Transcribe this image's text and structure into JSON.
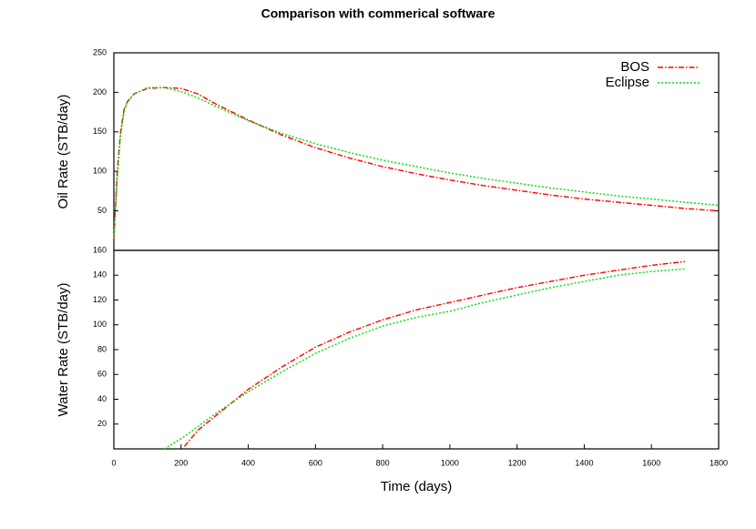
{
  "chart_data": [
    {
      "type": "line",
      "title": "Comparison with commerical software",
      "ylabel": "Oil Rate (STB/day)",
      "xlim": [
        0,
        1800
      ],
      "ylim": [
        0,
        250
      ],
      "yticks": [
        50,
        100,
        150,
        200,
        250
      ],
      "legend": "upper right",
      "x": [
        0,
        10,
        20,
        30,
        40,
        60,
        100,
        150,
        200,
        250,
        300,
        400,
        500,
        600,
        700,
        800,
        900,
        1000,
        1100,
        1200,
        1300,
        1400,
        1500,
        1600,
        1700,
        1800
      ],
      "series": [
        {
          "name": "BOS",
          "color": "#ff0000",
          "values": [
            15,
            100,
            150,
            178,
            188,
            198,
            205,
            206,
            205,
            198,
            186,
            165,
            146,
            130,
            117,
            106,
            97,
            89,
            82,
            76,
            70,
            65,
            61,
            57,
            53,
            50
          ]
        },
        {
          "name": "Eclipse",
          "color": "#00dd00",
          "values": [
            15,
            90,
            145,
            175,
            187,
            198,
            206,
            206,
            201,
            193,
            183,
            164,
            148,
            135,
            124,
            114,
            106,
            98,
            91,
            85,
            79,
            74,
            69,
            65,
            61,
            57
          ]
        }
      ]
    },
    {
      "type": "line",
      "ylabel": "Water Rate (STB/day)",
      "xlabel": "Time (days)",
      "xlim": [
        0,
        1800
      ],
      "xticks": [
        0,
        200,
        400,
        600,
        800,
        1000,
        1200,
        1400,
        1600,
        1800
      ],
      "ylim": [
        0,
        160
      ],
      "yticks": [
        20,
        40,
        60,
        80,
        100,
        120,
        140,
        160
      ],
      "x": [
        150,
        210,
        250,
        300,
        400,
        500,
        600,
        700,
        800,
        900,
        1000,
        1100,
        1200,
        1300,
        1400,
        1500,
        1600,
        1700
      ],
      "series": [
        {
          "name": "BOS",
          "color": "#ff0000",
          "values": [
            null,
            2,
            15,
            26,
            48,
            66,
            82,
            94,
            104,
            112,
            118,
            124,
            130,
            135,
            140,
            144,
            148,
            151
          ]
        },
        {
          "name": "Eclipse",
          "color": "#00dd00",
          "values": [
            0,
            10,
            18,
            28,
            46,
            62,
            77,
            89,
            99,
            106,
            111,
            118,
            124,
            130,
            135,
            140,
            143,
            145
          ]
        }
      ]
    }
  ]
}
